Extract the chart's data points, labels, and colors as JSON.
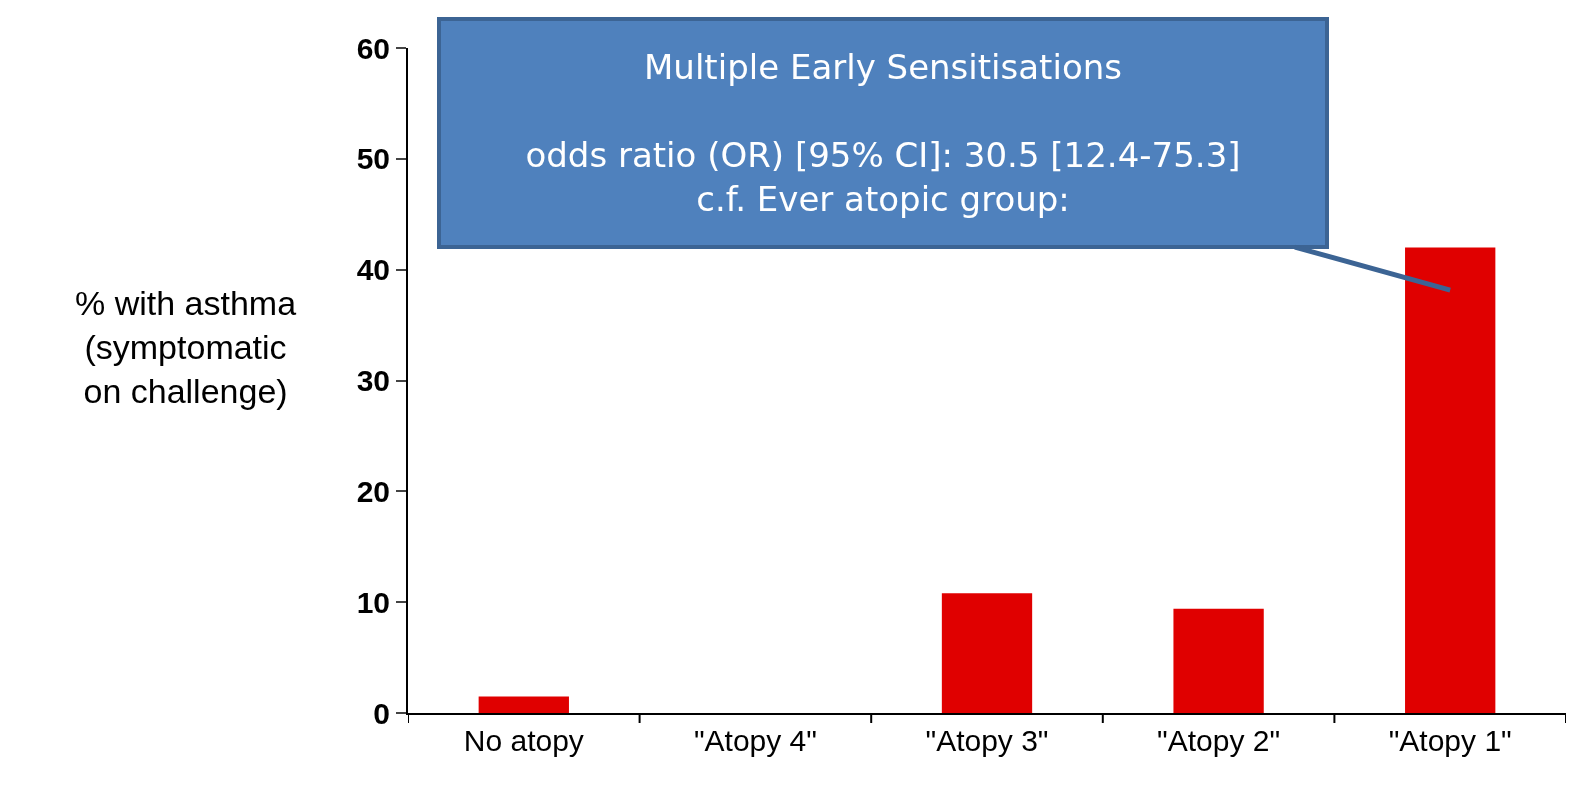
{
  "chart_data": {
    "type": "bar",
    "ylabel": "% with asthma\n(symptomatic\non challenge)",
    "categories": [
      "No atopy",
      "\"Atopy 4\"",
      "\"Atopy 3\"",
      "\"Atopy 2\"",
      "\"Atopy 1\""
    ],
    "values": [
      1.5,
      0,
      10.8,
      9.4,
      42
    ],
    "color": "#e00000",
    "ylim": [
      0,
      60
    ],
    "yticks": [
      0,
      10,
      20,
      30,
      40,
      50,
      60
    ],
    "grid": false,
    "legend": false,
    "annotations": [
      "Multiple Early Sensitisations\n\nodds ratio (OR) [95% CI]: 30.5 [12.4-75.3]\nc.f. Ever atopic group:"
    ]
  }
}
